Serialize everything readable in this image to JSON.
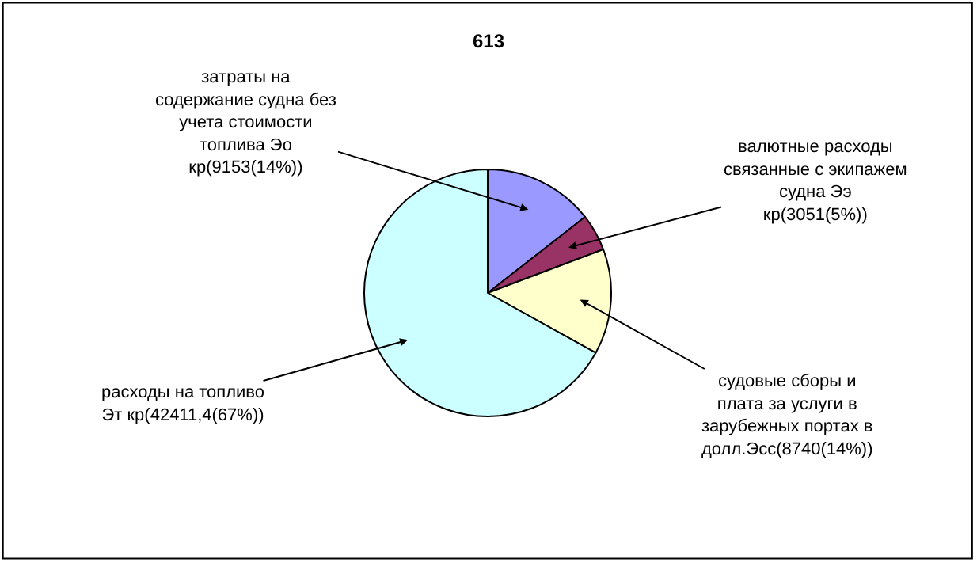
{
  "chart_data": {
    "type": "pie",
    "title": "613",
    "categories": [
      "затраты на содержание судна без учета стоимости топлива Эо кр(9153(14%))",
      "валютные расходы связанные с экипажем судна Ээ кр(3051(5%))",
      "судовые сборы и плата за услуги в зарубежных портах в долл.Эсс(8740(14%))",
      "расходы на топливо Эт кр(42411,4(67%))"
    ],
    "values": [
      9153,
      3051,
      8740,
      42411.4
    ],
    "colors": [
      "#9999ff",
      "#993366",
      "#ffffcc",
      "#ccffff"
    ],
    "legend": false
  }
}
